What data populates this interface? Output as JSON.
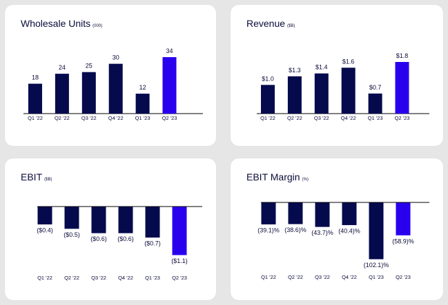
{
  "colors": {
    "primary": "#050a4d",
    "highlight": "#2900ee",
    "axis": "#000000",
    "text": "#0a0a3a"
  },
  "chart_data": [
    {
      "type": "bar",
      "title": "Wholesale Units",
      "unit": "(000)",
      "categories": [
        "Q1 '22",
        "Q2 '22",
        "Q3 '22",
        "Q4 '22",
        "Q1 '23",
        "Q2 '23"
      ],
      "values": [
        18,
        24,
        25,
        30,
        12,
        34
      ],
      "labels": [
        "18",
        "24",
        "25",
        "30",
        "12",
        "34"
      ],
      "ylim": [
        0,
        34
      ],
      "highlight_index": 5
    },
    {
      "type": "bar",
      "title": "Revenue",
      "unit": "($B)",
      "categories": [
        "Q1 '22",
        "Q2 '22",
        "Q3 '22",
        "Q4 '22",
        "Q1 '23",
        "Q2 '23"
      ],
      "values": [
        1.0,
        1.3,
        1.4,
        1.6,
        0.7,
        1.8
      ],
      "labels": [
        "$1.0",
        "$1.3",
        "$1.4",
        "$1.6",
        "$0.7",
        "$1.8"
      ],
      "ylim": [
        0,
        1.8
      ],
      "highlight_index": 5
    },
    {
      "type": "bar",
      "title": "EBIT",
      "unit": "($B)",
      "categories": [
        "Q1 '22",
        "Q2 '22",
        "Q3 '22",
        "Q4 '22",
        "Q1 '23",
        "Q2 '23"
      ],
      "values": [
        -0.4,
        -0.5,
        -0.6,
        -0.6,
        -0.7,
        -1.1
      ],
      "labels": [
        "($0.4)",
        "($0.5)",
        "($0.6)",
        "($0.6)",
        "($0.7)",
        "($1.1)"
      ],
      "ylim": [
        -1.1,
        0
      ],
      "highlight_index": 5
    },
    {
      "type": "bar",
      "title": "EBIT Margin",
      "unit": "(%)",
      "categories": [
        "Q1 '22",
        "Q2 '22",
        "Q3 '22",
        "Q4 '22",
        "Q1 '23",
        "Q2 '23"
      ],
      "values": [
        -39.1,
        -38.6,
        -43.7,
        -40.4,
        -102.1,
        -58.9
      ],
      "labels": [
        "(39.1)%",
        "(38.6)%",
        "(43.7)%",
        "(40.4)%",
        "(102.1)%",
        "(58.9)%"
      ],
      "ylim": [
        -102.1,
        0
      ],
      "highlight_index": 5
    }
  ]
}
